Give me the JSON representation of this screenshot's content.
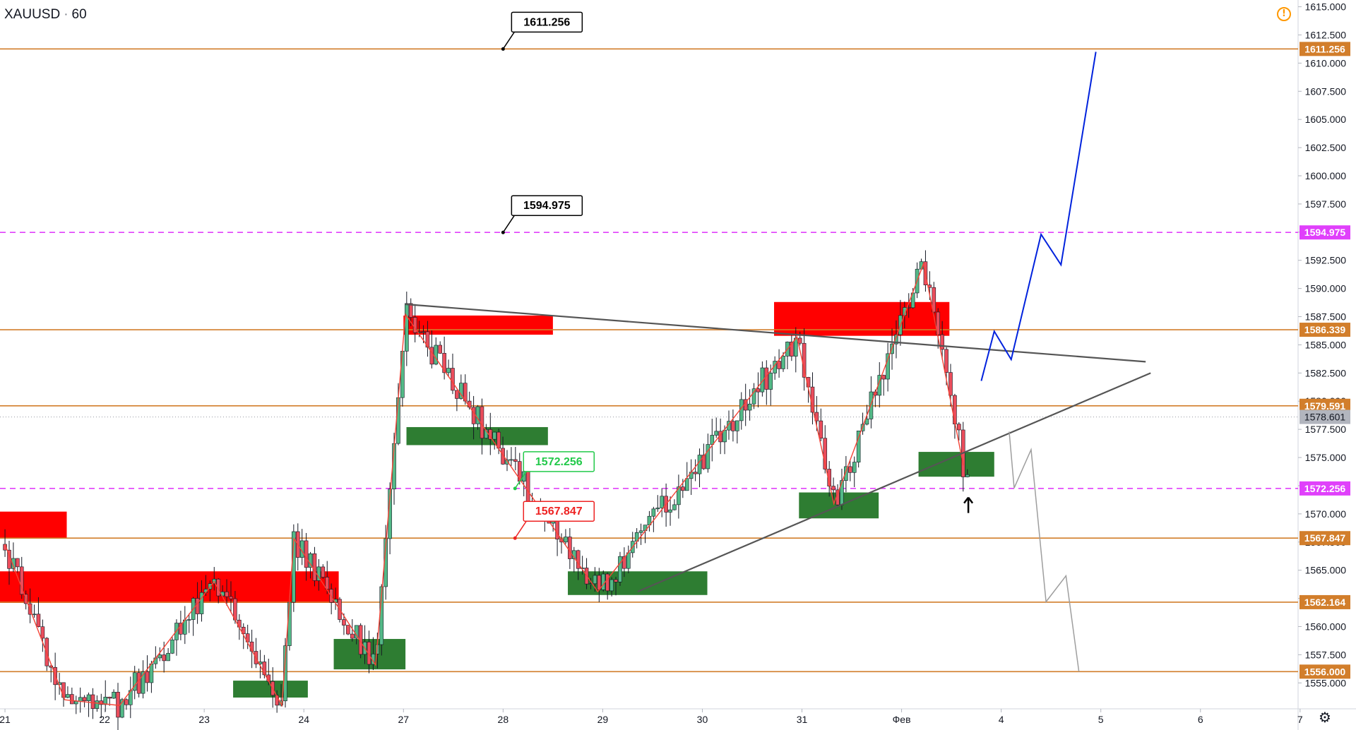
{
  "header": {
    "symbol": "XAUUSD",
    "interval": "60",
    "separator": "·"
  },
  "icons": {
    "warning": "warning-icon",
    "settings": "gear-icon"
  },
  "colors": {
    "up_candle": "#53b987",
    "down_candle": "#eb4d5c",
    "sr_level": "#d27e2b",
    "target_level": "#e040fb",
    "resistance_zone": "#ff0000",
    "support_zone": "#2e7d32",
    "zigzag": "#f44336",
    "trendline": "#555555",
    "bull_path": "#0022dd",
    "bear_path": "#9e9e9e"
  },
  "chart_data": {
    "type": "candlestick",
    "instrument": "XAUUSD",
    "timeframe": "60",
    "ylim": [
      1552.7,
      1615.6
    ],
    "y_ticks": [
      "1615.000",
      "1612.500",
      "1610.000",
      "1607.500",
      "1605.000",
      "1602.500",
      "1600.000",
      "1597.500",
      "1595.000",
      "1592.500",
      "1590.000",
      "1587.500",
      "1585.000",
      "1582.500",
      "1580.000",
      "1577.500",
      "1575.000",
      "1572.500",
      "1570.000",
      "1567.500",
      "1565.000",
      "1562.500",
      "1560.000",
      "1557.500",
      "1555.000"
    ],
    "x_ticks": [
      "21",
      "22",
      "23",
      "24",
      "27",
      "28",
      "29",
      "30",
      "31",
      "Фев",
      "4",
      "5",
      "6",
      "7"
    ],
    "horizontal_levels": [
      {
        "label": "1611.256",
        "value": 1611.256,
        "style": "solid",
        "kind": "sr"
      },
      {
        "label": "1594.975",
        "value": 1594.975,
        "style": "dashed",
        "kind": "target"
      },
      {
        "label": "1586.339",
        "value": 1586.339,
        "style": "solid",
        "kind": "sr"
      },
      {
        "label": "1579.591",
        "value": 1579.591,
        "style": "solid",
        "kind": "sr"
      },
      {
        "label": "1572.256",
        "value": 1572.256,
        "style": "dashed",
        "kind": "target"
      },
      {
        "label": "1567.847",
        "value": 1567.847,
        "style": "solid",
        "kind": "sr"
      },
      {
        "label": "1562.164",
        "value": 1562.164,
        "style": "solid",
        "kind": "sr"
      },
      {
        "label": "1556.000",
        "value": 1556.0,
        "style": "solid",
        "kind": "sr"
      }
    ],
    "last_price": {
      "label": "1578.601",
      "value": 1578.601
    },
    "callouts": [
      {
        "text": "1611.256",
        "value": 1611.256,
        "x": 5.0,
        "color": "#000000"
      },
      {
        "text": "1594.975",
        "value": 1594.975,
        "x": 5.0,
        "color": "#000000"
      },
      {
        "text": "1572.256",
        "value": 1572.256,
        "x": 5.12,
        "color": "#22c94a"
      },
      {
        "text": "1567.847",
        "value": 1567.847,
        "x": 5.12,
        "color": "#ee2222"
      }
    ],
    "zones": [
      {
        "kind": "resistance",
        "x0": -0.05,
        "x1": 0.62,
        "y0": 1567.8,
        "y1": 1570.2
      },
      {
        "kind": "resistance",
        "x0": -0.05,
        "x1": 3.35,
        "y0": 1562.1,
        "y1": 1564.9
      },
      {
        "kind": "support",
        "x0": 2.29,
        "x1": 3.04,
        "y0": 1553.7,
        "y1": 1555.2
      },
      {
        "kind": "support",
        "x0": 3.3,
        "x1": 4.02,
        "y0": 1556.2,
        "y1": 1558.9
      },
      {
        "kind": "resistance",
        "x0": 4.0,
        "x1": 5.5,
        "y0": 1585.9,
        "y1": 1587.6
      },
      {
        "kind": "support",
        "x0": 4.03,
        "x1": 5.45,
        "y0": 1576.1,
        "y1": 1577.7
      },
      {
        "kind": "support",
        "x0": 5.65,
        "x1": 7.05,
        "y0": 1562.8,
        "y1": 1564.9
      },
      {
        "kind": "resistance",
        "x0": 7.72,
        "x1": 9.48,
        "y0": 1585.8,
        "y1": 1588.8
      },
      {
        "kind": "support",
        "x0": 7.97,
        "x1": 8.77,
        "y0": 1569.6,
        "y1": 1571.9
      },
      {
        "kind": "support",
        "x0": 9.17,
        "x1": 9.93,
        "y0": 1573.3,
        "y1": 1575.5
      }
    ],
    "zigzag": [
      {
        "x": 0.0,
        "y": 1567.3
      },
      {
        "x": 0.6,
        "y": 1553.5
      },
      {
        "x": 1.15,
        "y": 1553.0
      },
      {
        "x": 2.1,
        "y": 1564.0
      },
      {
        "x": 2.78,
        "y": 1553.0
      },
      {
        "x": 2.9,
        "y": 1567.8
      },
      {
        "x": 3.72,
        "y": 1556.6
      },
      {
        "x": 4.02,
        "y": 1587.7
      },
      {
        "x": 5.95,
        "y": 1563.1
      },
      {
        "x": 7.95,
        "y": 1585.7
      },
      {
        "x": 8.32,
        "y": 1570.9
      },
      {
        "x": 9.22,
        "y": 1592.2
      },
      {
        "x": 9.62,
        "y": 1574.3
      }
    ],
    "trendlines": [
      {
        "x0": 4.02,
        "y0": 1588.6,
        "x1": 11.45,
        "y1": 1583.5
      },
      {
        "x0": 6.35,
        "y0": 1563.1,
        "x1": 11.5,
        "y1": 1582.5
      }
    ],
    "projection_bull": [
      {
        "x": 9.8,
        "y": 1581.8
      },
      {
        "x": 9.93,
        "y": 1586.2
      },
      {
        "x": 10.1,
        "y": 1583.7
      },
      {
        "x": 10.4,
        "y": 1594.8
      },
      {
        "x": 10.6,
        "y": 1592.1
      },
      {
        "x": 10.95,
        "y": 1611.0
      }
    ],
    "projection_bear": [
      {
        "x": 10.08,
        "y": 1577.3
      },
      {
        "x": 10.13,
        "y": 1572.3
      },
      {
        "x": 10.3,
        "y": 1575.7
      },
      {
        "x": 10.45,
        "y": 1562.2
      },
      {
        "x": 10.65,
        "y": 1564.5
      },
      {
        "x": 10.78,
        "y": 1556.0
      }
    ],
    "arrow_marker": {
      "x": 9.67,
      "y": 1570.7
    }
  }
}
